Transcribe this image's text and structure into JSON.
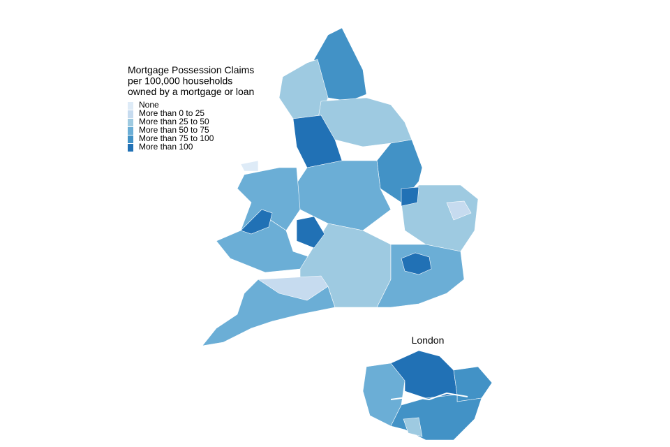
{
  "legend": {
    "title_lines": [
      "Mortgage Possession Claims",
      "per 100,000 households",
      "owned by a mortgage or loan"
    ],
    "items": [
      {
        "label": "None",
        "color": "#deebf7"
      },
      {
        "label": "More than 0 to 25",
        "color": "#c6dbef"
      },
      {
        "label": "More than 25 to 50",
        "color": "#9ecae1"
      },
      {
        "label": "More than 50 to 75",
        "color": "#6baed6"
      },
      {
        "label": "More than 75 to 100",
        "color": "#4292c6"
      },
      {
        "label": "More than 100",
        "color": "#2171b5"
      }
    ]
  },
  "inset": {
    "title": "London"
  }
}
